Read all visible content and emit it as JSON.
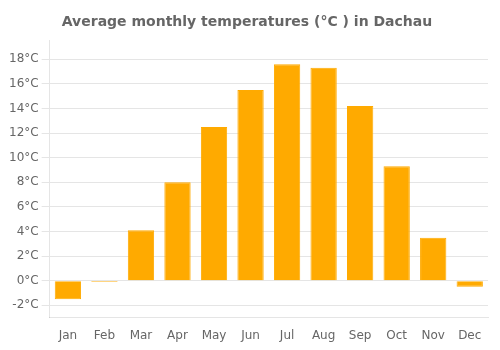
{
  "chart_data": {
    "type": "bar",
    "title": "Average monthly temperatures (°C ) in Dachau",
    "categories": [
      "Jan",
      "Feb",
      "Mar",
      "Apr",
      "May",
      "Jun",
      "Jul",
      "Aug",
      "Sep",
      "Oct",
      "Nov",
      "Dec"
    ],
    "values": [
      -1.5,
      -0.1,
      4.1,
      8.0,
      12.5,
      15.5,
      17.6,
      17.3,
      14.2,
      9.3,
      3.5,
      -0.5
    ],
    "color": "#FFAA00",
    "ylim": [
      -3,
      19.5
    ],
    "yticks": [
      {
        "value": -2,
        "label": "-2°C"
      },
      {
        "value": 0,
        "label": "0°C"
      },
      {
        "value": 2,
        "label": "2°C"
      },
      {
        "value": 4,
        "label": "4°C"
      },
      {
        "value": 6,
        "label": "6°C"
      },
      {
        "value": 8,
        "label": "8°C"
      },
      {
        "value": 10,
        "label": "10°C"
      },
      {
        "value": 12,
        "label": "12°C"
      },
      {
        "value": 14,
        "label": "14°C"
      },
      {
        "value": 16,
        "label": "16°C"
      },
      {
        "value": 18,
        "label": "18°C"
      }
    ],
    "grid": true
  }
}
